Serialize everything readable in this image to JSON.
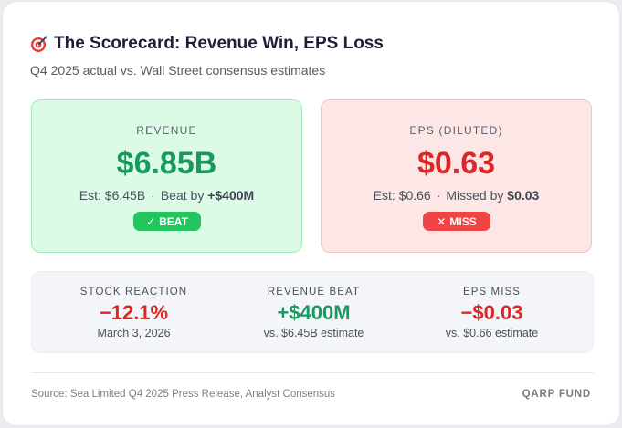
{
  "header": {
    "icon": "target-dart-icon",
    "title": "The Scorecard: Revenue Win, EPS Loss",
    "subtitle": "Q4 2025 actual vs. Wall Street consensus estimates"
  },
  "revenue_card": {
    "label": "REVENUE",
    "value": "$6.85B",
    "estimate_text": "Est: $6.45B",
    "separator": "·",
    "result_prefix": "Beat by",
    "result_amount": "+$400M",
    "badge_icon": "✓",
    "badge_label": "BEAT",
    "color": "#169a5e"
  },
  "eps_card": {
    "label": "EPS (DILUTED)",
    "value": "$0.63",
    "estimate_text": "Est: $0.66",
    "separator": "·",
    "result_prefix": "Missed by",
    "result_amount": "$0.03",
    "badge_icon": "✕",
    "badge_label": "MISS",
    "color": "#df2626"
  },
  "stats": [
    {
      "label": "STOCK REACTION",
      "value": "−12.1%",
      "sub": "March 3, 2026",
      "color": "#df2626"
    },
    {
      "label": "REVENUE BEAT",
      "value": "+$400M",
      "sub": "vs. $6.45B estimate",
      "color": "#169a5e"
    },
    {
      "label": "EPS MISS",
      "value": "−$0.03",
      "sub": "vs. $0.66 estimate",
      "color": "#df2626"
    }
  ],
  "footer": {
    "source": "Source: Sea Limited Q4 2025 Press Release, Analyst Consensus",
    "brand": "QARP FUND"
  }
}
